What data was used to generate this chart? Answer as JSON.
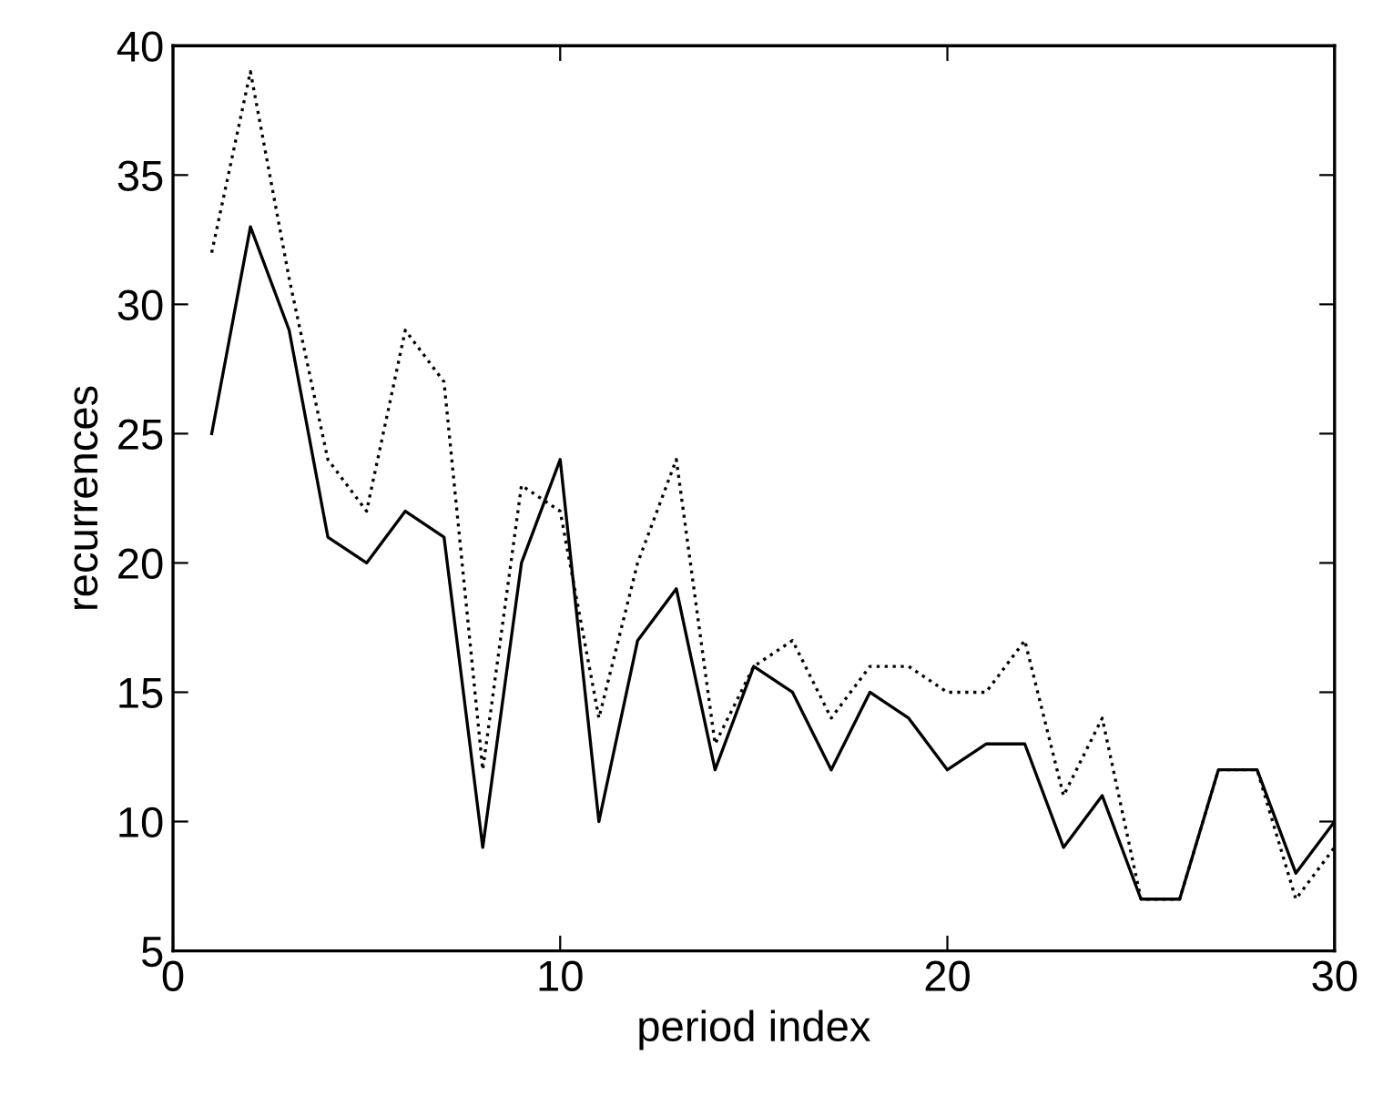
{
  "chart_data": {
    "type": "line",
    "xlabel": "period index",
    "ylabel": "recurrences",
    "x": [
      1,
      2,
      3,
      4,
      5,
      6,
      7,
      8,
      9,
      10,
      11,
      12,
      13,
      14,
      15,
      16,
      17,
      18,
      19,
      20,
      21,
      22,
      23,
      24,
      25,
      26,
      27,
      28,
      29,
      30
    ],
    "series": [
      {
        "color": "#000000",
        "line_style": "solid",
        "values": [
          25,
          33,
          29,
          21,
          20,
          22,
          21,
          9,
          20,
          24,
          10,
          17,
          19,
          12,
          16,
          15,
          12,
          15,
          14,
          12,
          13,
          13,
          9,
          11,
          7,
          7,
          12,
          12,
          8,
          10
        ]
      },
      {
        "color": "#000000",
        "line_style": "dotted",
        "values": [
          32,
          39,
          31,
          24,
          22,
          29,
          27,
          12,
          23,
          22,
          14,
          20,
          24,
          13,
          16,
          17,
          14,
          16,
          16,
          15,
          15,
          17,
          11,
          14,
          7,
          7,
          12,
          12,
          7,
          9
        ]
      }
    ],
    "xlim": [
      0,
      30
    ],
    "xticks": [
      0,
      10,
      20,
      30
    ],
    "ylim": [
      5,
      40
    ],
    "yticks": [
      5,
      10,
      15,
      20,
      25,
      30,
      35,
      40
    ],
    "grid": false,
    "marker": "none"
  }
}
